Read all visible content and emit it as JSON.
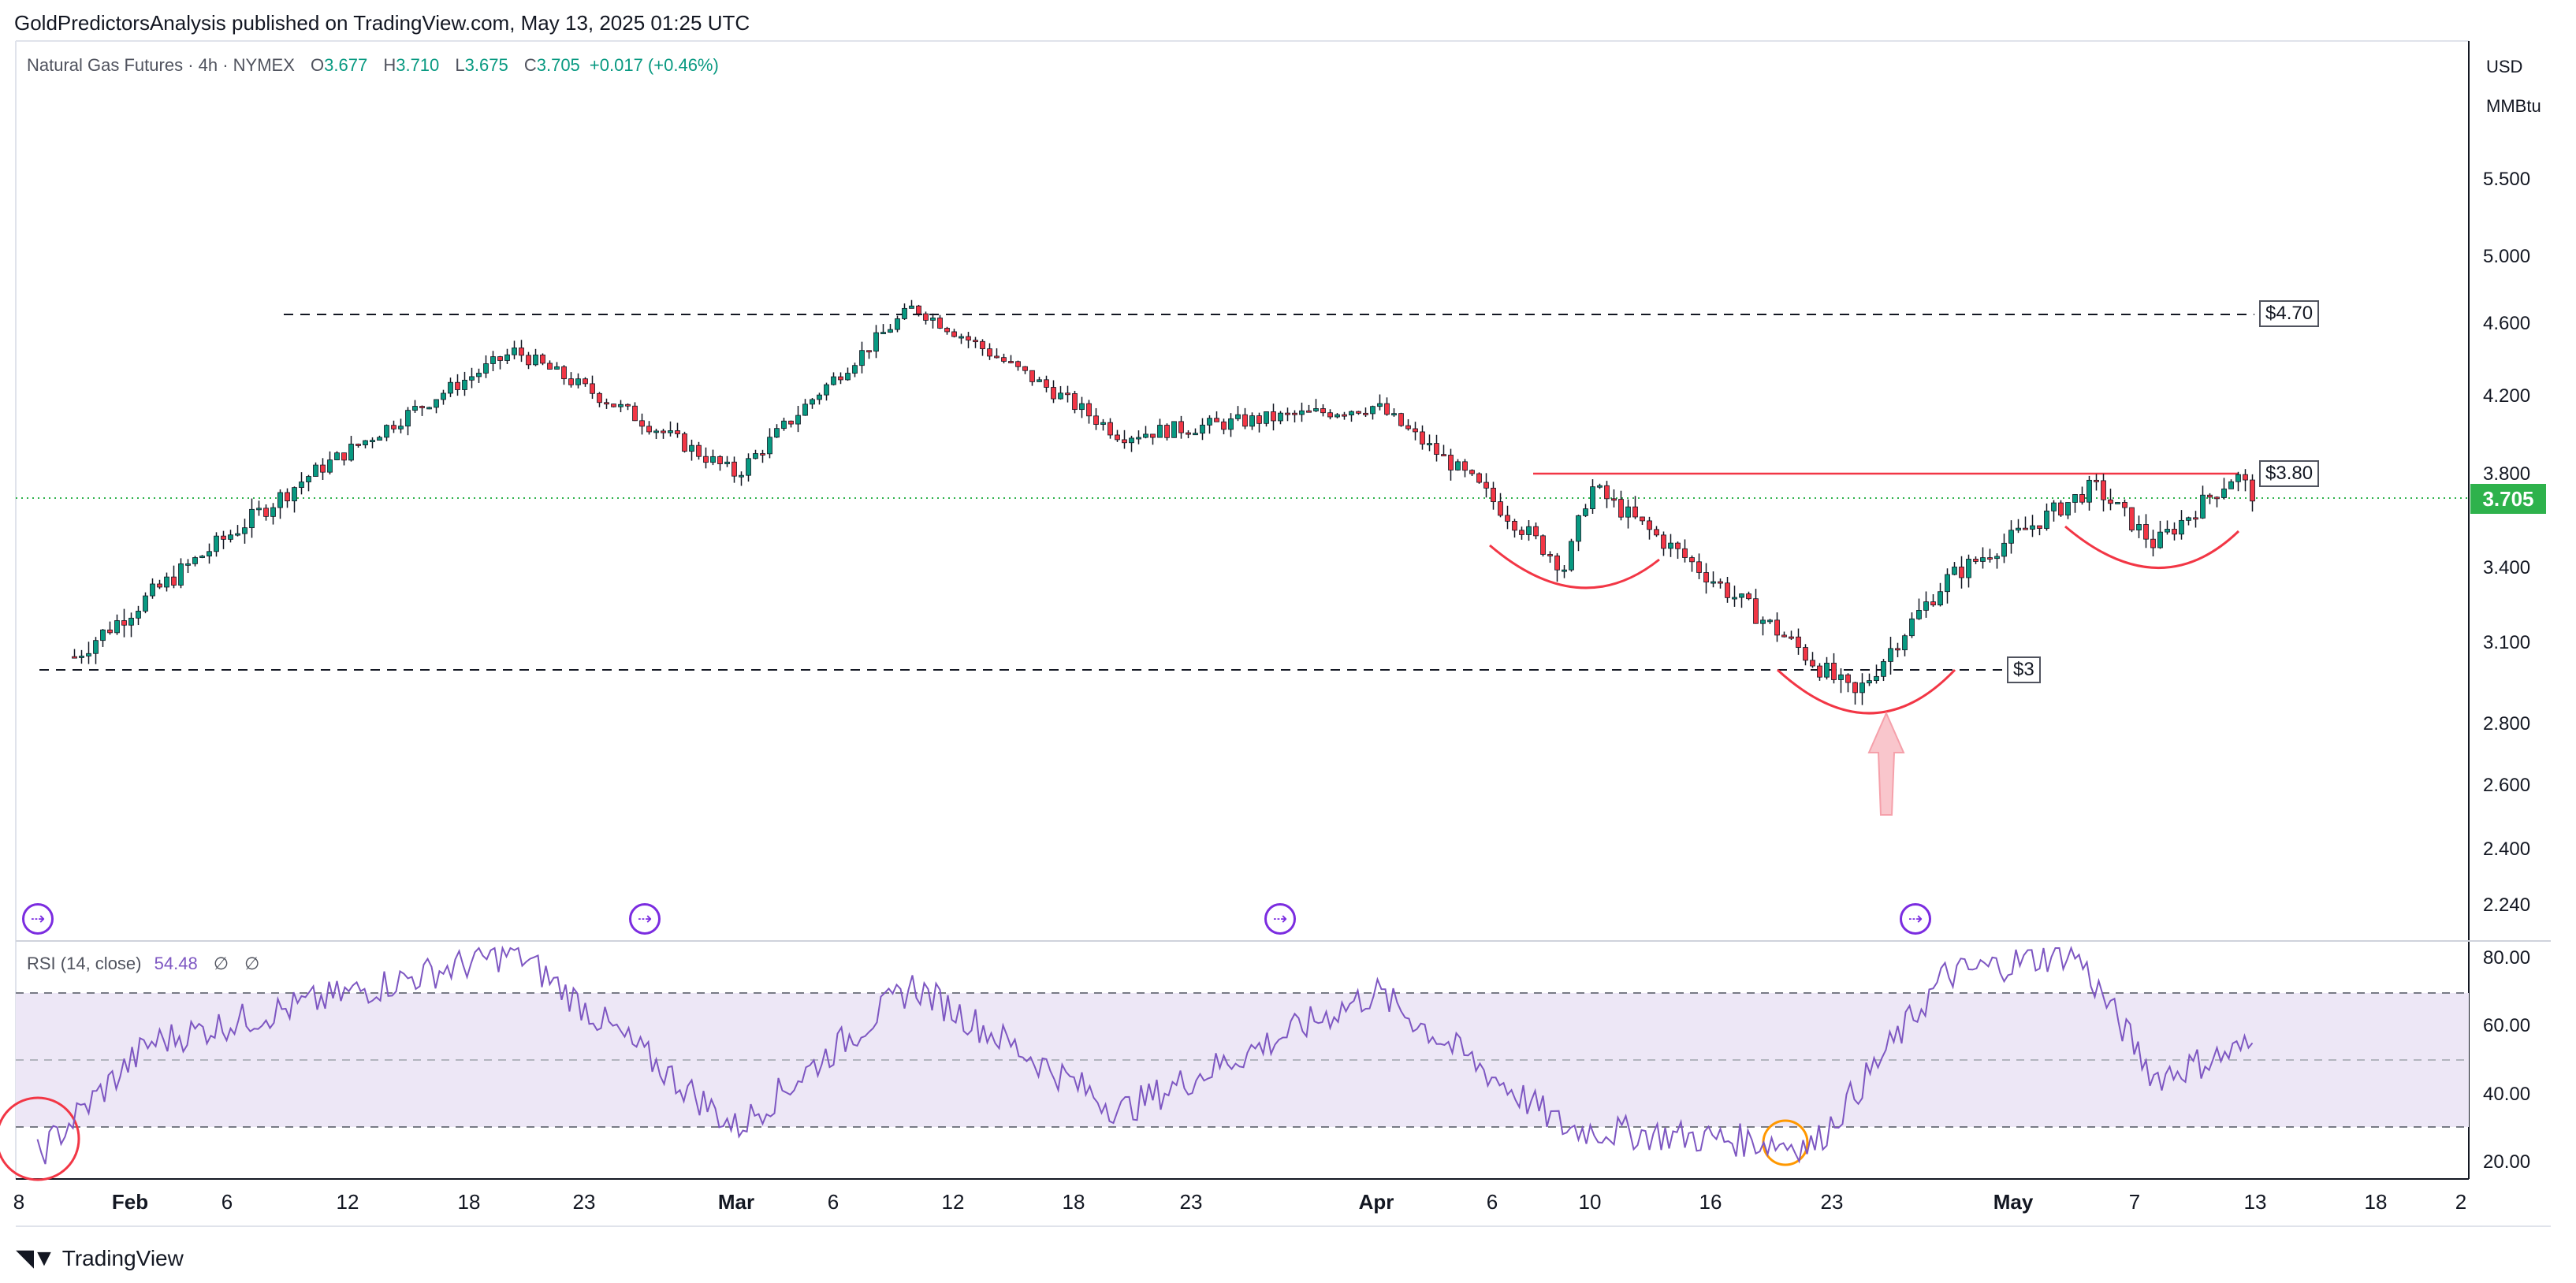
{
  "header": {
    "publisher_line": "GoldPredictorsAnalysis published on TradingView.com, May 13, 2025 01:25 UTC"
  },
  "legend": {
    "symbol": "Natural Gas Futures · 4h · NYMEX",
    "open_label": "O",
    "open": "3.677",
    "high_label": "H",
    "high": "3.710",
    "low_label": "L",
    "low": "3.675",
    "close_label": "C",
    "close": "3.705",
    "change": "+0.017 (+0.46%)"
  },
  "price_axis": {
    "currency": "USD",
    "unit": "MMBtu",
    "current_price": "3.705",
    "ticks": [
      "5.500",
      "5.000",
      "4.600",
      "4.200",
      "3.800",
      "3.400",
      "3.100",
      "2.800",
      "2.600",
      "2.400",
      "2.240"
    ]
  },
  "rsi": {
    "label": "RSI (14, close)",
    "value": "54.48",
    "extra1": "∅",
    "extra2": "∅",
    "ticks": [
      "80.00",
      "60.00",
      "40.00",
      "20.00"
    ]
  },
  "annotations": {
    "resistance_high": "$4.70",
    "resistance_neck": "$3.80",
    "support": "$3"
  },
  "time_axis": {
    "labels": [
      {
        "text": "8",
        "bold": false
      },
      {
        "text": "Feb",
        "bold": true
      },
      {
        "text": "6",
        "bold": false
      },
      {
        "text": "12",
        "bold": false
      },
      {
        "text": "18",
        "bold": false
      },
      {
        "text": "23",
        "bold": false
      },
      {
        "text": "Mar",
        "bold": true
      },
      {
        "text": "6",
        "bold": false
      },
      {
        "text": "12",
        "bold": false
      },
      {
        "text": "18",
        "bold": false
      },
      {
        "text": "23",
        "bold": false
      },
      {
        "text": "Apr",
        "bold": true
      },
      {
        "text": "6",
        "bold": false
      },
      {
        "text": "10",
        "bold": false
      },
      {
        "text": "16",
        "bold": false
      },
      {
        "text": "23",
        "bold": false
      },
      {
        "text": "May",
        "bold": true
      },
      {
        "text": "7",
        "bold": false
      },
      {
        "text": "13",
        "bold": false
      },
      {
        "text": "18",
        "bold": false
      },
      {
        "text": "2",
        "bold": false
      }
    ]
  },
  "footer": {
    "brand": "TradingView"
  },
  "colors": {
    "up": "#089981",
    "down": "#f23645",
    "rsi": "#7e57c2",
    "rsi_band": "#ede7f6",
    "accent_red": "#f23645",
    "current": "#2eb24c"
  },
  "chart_data": {
    "type": "candlestick",
    "price_ylim": [
      2.2,
      5.6
    ],
    "resistance_levels": [
      4.7,
      3.8,
      3.0
    ],
    "key_points": [
      {
        "x": "Jan 29",
        "y": 3.05
      },
      {
        "x": "Feb 20",
        "y": 4.45
      },
      {
        "x": "Mar 1",
        "y": 3.8
      },
      {
        "x": "Mar 10",
        "y": 4.7
      },
      {
        "x": "Mar 20",
        "y": 4.0
      },
      {
        "x": "Apr 1",
        "y": 4.15
      },
      {
        "x": "Apr 9",
        "y": 3.4
      },
      {
        "x": "Apr 10",
        "y": 3.75
      },
      {
        "x": "Apr 24",
        "y": 2.9
      },
      {
        "x": "Apr 28",
        "y": 3.35
      },
      {
        "x": "May 5",
        "y": 3.75
      },
      {
        "x": "May 8",
        "y": 3.5
      },
      {
        "x": "May 12",
        "y": 3.8
      },
      {
        "x": "May 13",
        "y": 3.705
      }
    ],
    "rsi_ylim": [
      15,
      85
    ],
    "rsi_levels": [
      70,
      50,
      30
    ],
    "rsi_key_points": [
      {
        "x": "Jan 27",
        "y": 22
      },
      {
        "x": "Feb 2",
        "y": 55
      },
      {
        "x": "Feb 20",
        "y": 82
      },
      {
        "x": "Mar 1",
        "y": 30
      },
      {
        "x": "Mar 10",
        "y": 72
      },
      {
        "x": "Mar 20",
        "y": 35
      },
      {
        "x": "Apr 1",
        "y": 70
      },
      {
        "x": "Apr 9",
        "y": 30
      },
      {
        "x": "Apr 22",
        "y": 25
      },
      {
        "x": "Apr 28",
        "y": 75
      },
      {
        "x": "May 4",
        "y": 82
      },
      {
        "x": "May 8",
        "y": 45
      },
      {
        "x": "May 13",
        "y": 54.48
      }
    ]
  }
}
